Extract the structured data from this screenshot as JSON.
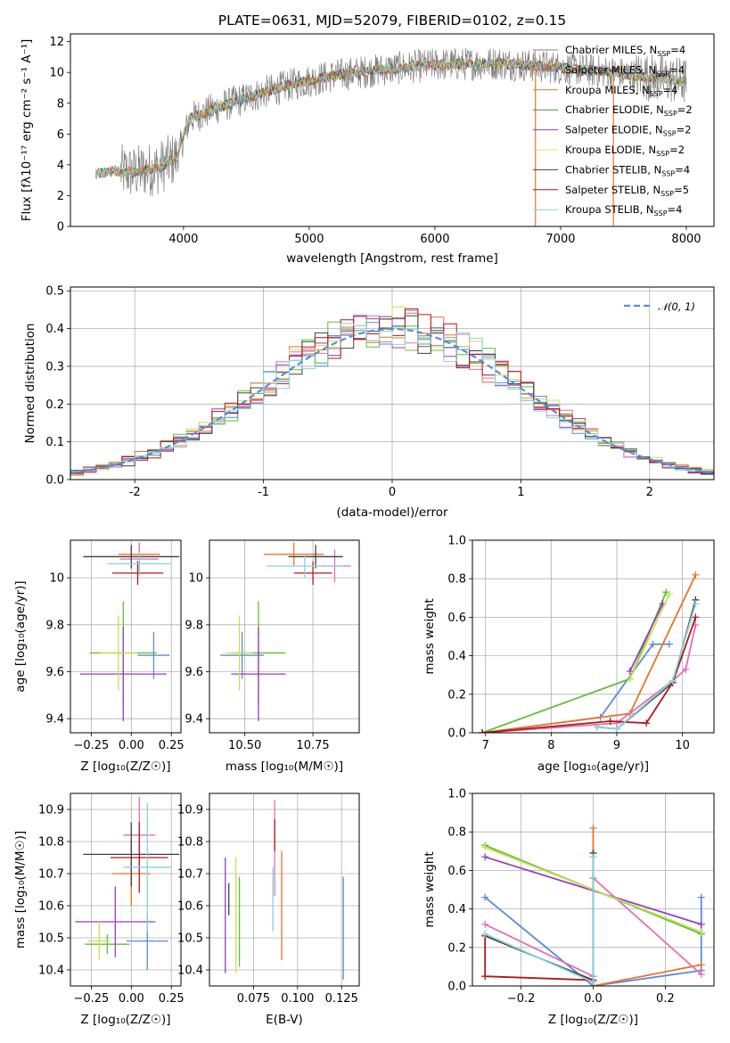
{
  "figure": {
    "title": "PLATE=0631, MJD=52079, FIBERID=0102, z=0.15",
    "series_colors": [
      "#7f7f7f",
      "#8c8c8c",
      "#e8742a",
      "#4c8a3c",
      "#9a3bbf",
      "#e4e05c",
      "#404040",
      "#b01919",
      "#86d3dc"
    ],
    "fit_colors": [
      "#5b8bd6",
      "#e8742a",
      "#5fbf3a",
      "#e070b8",
      "#9a3bbf",
      "#c8e050",
      "#404040",
      "#b01919",
      "#86d3dc"
    ]
  },
  "chart_data": [
    {
      "type": "line",
      "xlabel": "wavelength [Angstrom, rest frame]",
      "ylabel": "Flux [fλ10⁻¹⁷ erg cm⁻² s⁻¹ A⁻¹]",
      "xlim": [
        3100,
        8220
      ],
      "ylim": [
        0,
        12.5
      ],
      "xticks": [
        4000,
        5000,
        6000,
        7000,
        8000
      ],
      "yticks": [
        0,
        2,
        4,
        6,
        8,
        10,
        12
      ],
      "legend_position": "upper right",
      "series": [
        {
          "name": "Chabrier MILES, N_SSP=4"
        },
        {
          "name": "Salpeter MILES, N_SSP=4"
        },
        {
          "name": "Kroupa MILES, N_SSP=4"
        },
        {
          "name": "Chabrier ELODIE, N_SSP=2"
        },
        {
          "name": "Salpeter ELODIE, N_SSP=2"
        },
        {
          "name": "Kroupa ELODIE, N_SSP=2"
        },
        {
          "name": "Chabrier STELIB, N_SSP=4"
        },
        {
          "name": "Salpeter STELIB, N_SSP=5"
        },
        {
          "name": "Kroupa STELIB, N_SSP=4"
        }
      ],
      "continuum_knots": {
        "x": [
          3300,
          3450,
          3600,
          3800,
          3950,
          4050,
          4300,
          4600,
          4900,
          5200,
          5600,
          6000,
          6500,
          7000,
          7400,
          8000
        ],
        "y": [
          3.4,
          3.6,
          3.5,
          3.8,
          4.5,
          7.0,
          7.8,
          8.6,
          9.3,
          9.8,
          10.2,
          10.5,
          10.6,
          10.3,
          10.0,
          9.4
        ]
      },
      "data_range": [
        3500,
        8000
      ],
      "fit_range": [
        3300,
        8000
      ]
    },
    {
      "type": "bar",
      "xlabel": "(data-model)/error",
      "ylabel": "Normed distribution",
      "xlim": [
        -2.5,
        2.5
      ],
      "ylim": [
        0,
        0.51
      ],
      "xticks": [
        -2,
        -1,
        0,
        1,
        2
      ],
      "yticks": [
        0.0,
        0.1,
        0.2,
        0.3,
        0.4,
        0.5
      ],
      "grid": true,
      "legend_position": "upper right",
      "reference_curve": {
        "name": "𝒩(0, 1)",
        "mean": 0,
        "sigma": 1
      },
      "bin_width": 0.1
    },
    {
      "type": "scatter",
      "xlabel": "Z [log₁₀(Z/Z☉)]",
      "ylabel": "age  [log₁₀(age/yr)]",
      "xlim": [
        -0.38,
        0.31
      ],
      "ylim": [
        9.34,
        10.16
      ],
      "xticks": [
        -0.25,
        0.0,
        0.25
      ],
      "yticks": [
        9.4,
        9.6,
        9.8,
        10.0
      ],
      "xticklabels": [
        "−0.25",
        "0.00",
        "0.25"
      ],
      "grid": true,
      "points": [
        {
          "x": 0.14,
          "y": 9.67,
          "xerr": 0.1,
          "yerr": 0.1
        },
        {
          "x": 0.05,
          "y": 10.1,
          "xerr": 0.13,
          "yerr": 0.05
        },
        {
          "x": -0.05,
          "y": 9.68,
          "xerr": 0.21,
          "yerr": 0.22
        },
        {
          "x": 0.05,
          "y": 10.08,
          "xerr": 0.12,
          "yerr": 0.07
        },
        {
          "x": -0.05,
          "y": 9.59,
          "xerr": 0.27,
          "yerr": 0.2
        },
        {
          "x": -0.08,
          "y": 9.68,
          "xerr": 0.12,
          "yerr": 0.16
        },
        {
          "x": 0.0,
          "y": 10.09,
          "xerr": 0.3,
          "yerr": 0.05
        },
        {
          "x": 0.04,
          "y": 10.02,
          "xerr": 0.16,
          "yerr": 0.05
        },
        {
          "x": 0.05,
          "y": 10.06,
          "xerr": 0.2,
          "yerr": 0.05
        }
      ]
    },
    {
      "type": "scatter",
      "xlabel": "mass [log₁₀(M/M☉)]",
      "ylabel": "",
      "xlim": [
        10.37,
        10.92
      ],
      "ylim": [
        9.34,
        10.16
      ],
      "xticks": [
        10.5,
        10.75
      ],
      "yticks": [
        9.4,
        9.6,
        9.8,
        10.0
      ],
      "xticklabels": [
        "10.50",
        "10.75"
      ],
      "grid": true,
      "points": [
        {
          "x": 10.49,
          "y": 9.67,
          "xerr": 0.08,
          "yerr": 0.1
        },
        {
          "x": 10.68,
          "y": 10.1,
          "xerr": 0.11,
          "yerr": 0.05
        },
        {
          "x": 10.55,
          "y": 9.68,
          "xerr": 0.1,
          "yerr": 0.22
        },
        {
          "x": 10.83,
          "y": 10.05,
          "xerr": 0.06,
          "yerr": 0.07
        },
        {
          "x": 10.55,
          "y": 9.59,
          "xerr": 0.1,
          "yerr": 0.2
        },
        {
          "x": 10.48,
          "y": 9.68,
          "xerr": 0.05,
          "yerr": 0.16
        },
        {
          "x": 10.76,
          "y": 10.09,
          "xerr": 0.1,
          "yerr": 0.05
        },
        {
          "x": 10.75,
          "y": 10.02,
          "xerr": 0.07,
          "yerr": 0.05
        },
        {
          "x": 10.72,
          "y": 10.05,
          "xerr": 0.14,
          "yerr": 0.05
        }
      ]
    },
    {
      "type": "line",
      "xlabel": "age  [log₁₀(age/yr)]",
      "ylabel": "mass weight",
      "xlim": [
        6.8,
        10.48
      ],
      "ylim": [
        0,
        1.0
      ],
      "xticks": [
        7,
        8,
        9,
        10
      ],
      "yticks": [
        0.0,
        0.2,
        0.4,
        0.6,
        0.8,
        1.0
      ],
      "grid": true,
      "series": [
        {
          "x": [
            6.95,
            8.75,
            9.55,
            9.8
          ],
          "y": [
            0.0,
            0.08,
            0.46,
            0.46
          ]
        },
        {
          "x": [
            6.95,
            9.2,
            10.2
          ],
          "y": [
            0.0,
            0.1,
            0.82
          ]
        },
        {
          "x": [
            6.95,
            9.2,
            9.75
          ],
          "y": [
            0.0,
            0.28,
            0.73
          ]
        },
        {
          "x": [
            6.95,
            9.0,
            9.85,
            10.05,
            10.2
          ],
          "y": [
            0.0,
            0.05,
            0.27,
            0.33,
            0.56
          ]
        },
        {
          "x": [
            9.2,
            9.7
          ],
          "y": [
            0.32,
            0.67
          ]
        },
        {
          "x": [
            9.2,
            9.8
          ],
          "y": [
            0.28,
            0.72
          ]
        },
        {
          "x": [
            8.7,
            9.0,
            9.85,
            10.2
          ],
          "y": [
            0.03,
            0.02,
            0.26,
            0.69
          ]
        },
        {
          "x": [
            6.95,
            8.9,
            9.45,
            9.85,
            10.2
          ],
          "y": [
            0.0,
            0.06,
            0.05,
            0.26,
            0.6
          ]
        },
        {
          "x": [
            8.7,
            9.0,
            9.85,
            10.2
          ],
          "y": [
            0.03,
            0.02,
            0.27,
            0.67
          ]
        }
      ]
    },
    {
      "type": "scatter",
      "xlabel": "Z [log₁₀(Z/Z☉)]",
      "ylabel": "mass [log₁₀(M/M☉)]",
      "xlim": [
        -0.38,
        0.31
      ],
      "ylim": [
        10.35,
        10.95
      ],
      "xticks": [
        -0.25,
        0.0,
        0.25
      ],
      "yticks": [
        10.4,
        10.5,
        10.6,
        10.7,
        10.8,
        10.9
      ],
      "xticklabels": [
        "−0.25",
        "0.00",
        "0.25"
      ],
      "grid": true,
      "points": [
        {
          "x": 0.1,
          "y": 10.49,
          "xerr": 0.13,
          "yerr": 0.09
        },
        {
          "x": 0.0,
          "y": 10.7,
          "xerr": 0.12,
          "yerr": 0.1
        },
        {
          "x": -0.15,
          "y": 10.48,
          "xerr": 0.14,
          "yerr": 0.03
        },
        {
          "x": 0.05,
          "y": 10.82,
          "xerr": 0.1,
          "yerr": 0.12
        },
        {
          "x": -0.1,
          "y": 10.55,
          "xerr": 0.25,
          "yerr": 0.11
        },
        {
          "x": -0.2,
          "y": 10.49,
          "xerr": 0.07,
          "yerr": 0.06
        },
        {
          "x": 0.0,
          "y": 10.76,
          "xerr": 0.3,
          "yerr": 0.1
        },
        {
          "x": 0.05,
          "y": 10.75,
          "xerr": 0.18,
          "yerr": 0.11
        },
        {
          "x": 0.1,
          "y": 10.72,
          "xerr": 0.15,
          "yerr": 0.2
        }
      ]
    },
    {
      "type": "scatter",
      "xlabel": "E(B-V)",
      "ylabel": "",
      "xlim": [
        0.05,
        0.135
      ],
      "ylim": [
        10.35,
        10.95
      ],
      "xticks": [
        0.075,
        0.1,
        0.125
      ],
      "yticks": [
        10.4,
        10.5,
        10.6,
        10.7,
        10.8,
        10.9
      ],
      "xticklabels": [
        "0.075",
        "0.100",
        "0.125"
      ],
      "grid": true,
      "points": [
        {
          "x": 0.126,
          "y": 10.53,
          "yerr": 0.16
        },
        {
          "x": 0.091,
          "y": 10.6,
          "yerr": 0.17
        },
        {
          "x": 0.067,
          "y": 10.55,
          "yerr": 0.14
        },
        {
          "x": 0.087,
          "y": 10.78,
          "yerr": 0.15
        },
        {
          "x": 0.059,
          "y": 10.57,
          "yerr": 0.18
        },
        {
          "x": 0.065,
          "y": 10.57,
          "yerr": 0.18
        },
        {
          "x": 0.061,
          "y": 10.62,
          "yerr": 0.05
        },
        {
          "x": 0.087,
          "y": 10.82,
          "yerr": 0.05
        },
        {
          "x": 0.086,
          "y": 10.62,
          "yerr": 0.1
        }
      ]
    },
    {
      "type": "line",
      "xlabel": "Z [log₁₀(Z/Z☉)]",
      "ylabel": "mass weight",
      "xlim": [
        -0.335,
        0.335
      ],
      "ylim": [
        0,
        1.0
      ],
      "xticks": [
        -0.2,
        0.0,
        0.2
      ],
      "yticks": [
        0.0,
        0.2,
        0.4,
        0.6,
        0.8,
        1.0
      ],
      "xticklabels": [
        "−0.2",
        "0.0",
        "0.2"
      ],
      "grid": true,
      "series": [
        {
          "x": [
            -0.3,
            0.0,
            0.3,
            0.3
          ],
          "y": [
            0.46,
            0.0,
            0.08,
            0.46
          ]
        },
        {
          "x": [
            0.0,
            0.0,
            0.3
          ],
          "y": [
            0.82,
            0.0,
            0.11
          ]
        },
        {
          "x": [
            -0.3,
            0.3
          ],
          "y": [
            0.73,
            0.27
          ]
        },
        {
          "x": [
            -0.3,
            0.0,
            0.0,
            0.3
          ],
          "y": [
            0.32,
            0.05,
            0.56,
            0.06
          ]
        },
        {
          "x": [
            -0.3,
            0.3
          ],
          "y": [
            0.67,
            0.32
          ]
        },
        {
          "x": [
            -0.3,
            0.3
          ],
          "y": [
            0.72,
            0.28
          ]
        },
        {
          "x": [
            -0.3,
            0.0,
            0.0
          ],
          "y": [
            0.26,
            0.03,
            0.69
          ]
        },
        {
          "x": [
            -0.3,
            -0.3,
            0.0
          ],
          "y": [
            0.26,
            0.05,
            0.03
          ]
        },
        {
          "x": [
            -0.3,
            0.0,
            0.0
          ],
          "y": [
            0.27,
            0.02,
            0.67
          ]
        }
      ]
    }
  ]
}
